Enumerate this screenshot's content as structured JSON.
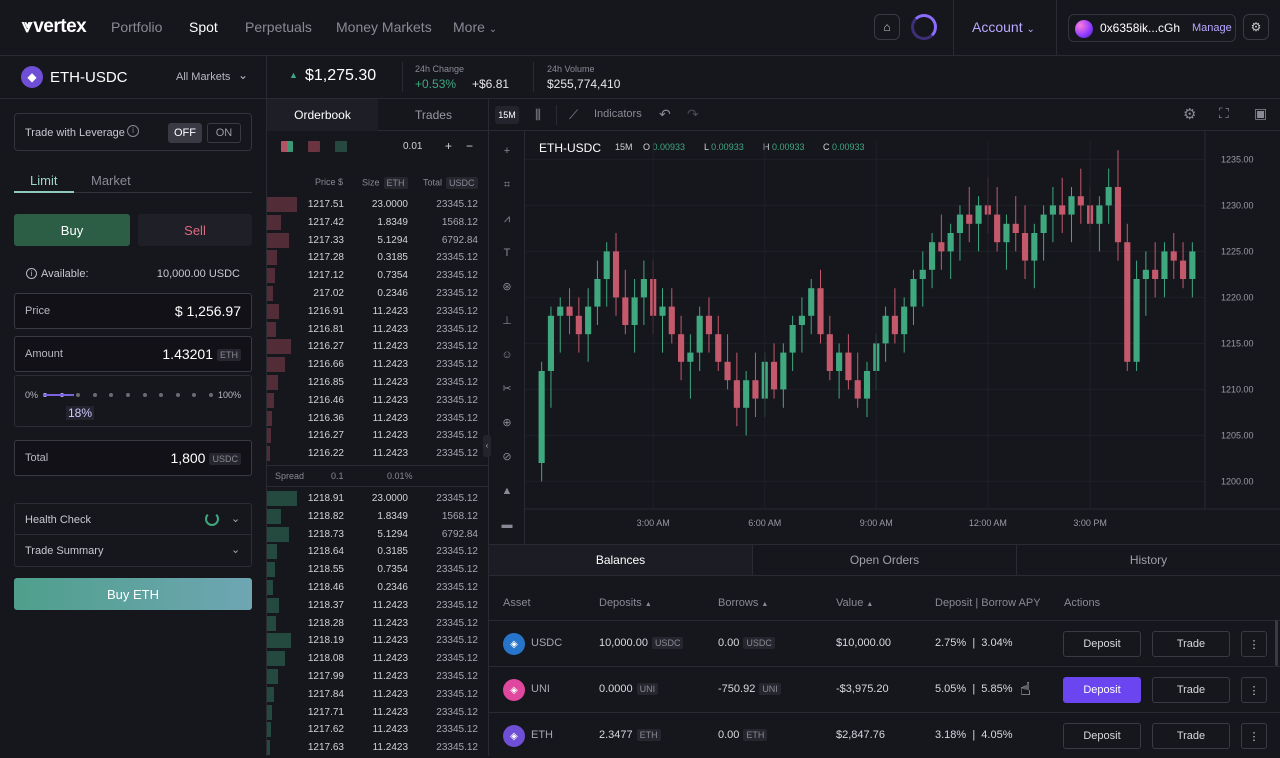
{
  "nav": {
    "logo": "vertex",
    "items": [
      "Portfolio",
      "Spot",
      "Perpetuals",
      "Money Markets",
      "More"
    ],
    "active": "Spot",
    "account_label": "Account",
    "wallet_address": "0x6358ik...cGh",
    "manage_label": "Manage"
  },
  "market": {
    "pair": "ETH-USDC",
    "all_markets": "All Markets",
    "price": "$1,275.30",
    "change_label": "24h Change",
    "change_pct": "+0.53%",
    "change_abs": "+$6.81",
    "volume_label": "24h Volume",
    "volume": "$255,774,410"
  },
  "order": {
    "leverage_label": "Trade with Leverage",
    "off": "OFF",
    "on": "ON",
    "tab_limit": "Limit",
    "tab_market": "Market",
    "buy": "Buy",
    "sell": "Sell",
    "available_label": "Available:",
    "available_value": "10,000.00 USDC",
    "price_label": "Price",
    "price_value": "$ 1,256.97",
    "amount_label": "Amount",
    "amount_value": "1.43201",
    "amount_unit": "ETH",
    "slider_min": "0%",
    "slider_max": "100%",
    "slider_value": "18%",
    "slider_fraction": 0.18,
    "total_label": "Total",
    "total_value": "1,800",
    "total_unit": "USDC",
    "health_check": "Health Check",
    "trade_summary": "Trade Summary",
    "buy_eth": "Buy ETH"
  },
  "orderbook": {
    "tab_orderbook": "Orderbook",
    "tab_trades": "Trades",
    "tick": "0.01",
    "plus": "+",
    "minus": "−",
    "col_price": "Price $",
    "col_size": "Size",
    "col_size_unit": "ETH",
    "col_total": "Total",
    "col_total_unit": "USDC",
    "spread_label": "Spread",
    "spread_value": "0.1",
    "spread_pct": "0.01%",
    "asks": [
      [
        "1217.51",
        "23.0000",
        "23345.12"
      ],
      [
        "1217.42",
        "1.8349",
        "1568.12"
      ],
      [
        "1217.33",
        "5.1294",
        "6792.84"
      ],
      [
        "1217.28",
        "0.3185",
        "23345.12"
      ],
      [
        "1217.12",
        "0.7354",
        "23345.12"
      ],
      [
        "217.02",
        "0.2346",
        "23345.12"
      ],
      [
        "1216.91",
        "11.2423",
        "23345.12"
      ],
      [
        "1216.81",
        "11.2423",
        "23345.12"
      ],
      [
        "1216.27",
        "11.2423",
        "23345.12"
      ],
      [
        "1216.66",
        "11.2423",
        "23345.12"
      ],
      [
        "1216.85",
        "11.2423",
        "23345.12"
      ],
      [
        "1216.46",
        "11.2423",
        "23345.12"
      ],
      [
        "1216.36",
        "11.2423",
        "23345.12"
      ],
      [
        "1216.27",
        "11.2423",
        "23345.12"
      ],
      [
        "1216.22",
        "11.2423",
        "23345.12"
      ]
    ],
    "bids": [
      [
        "1218.91",
        "23.0000",
        "23345.12"
      ],
      [
        "1218.82",
        "1.8349",
        "1568.12"
      ],
      [
        "1218.73",
        "5.1294",
        "6792.84"
      ],
      [
        "1218.64",
        "0.3185",
        "23345.12"
      ],
      [
        "1218.55",
        "0.7354",
        "23345.12"
      ],
      [
        "1218.46",
        "0.2346",
        "23345.12"
      ],
      [
        "1218.37",
        "11.2423",
        "23345.12"
      ],
      [
        "1218.28",
        "11.2423",
        "23345.12"
      ],
      [
        "1218.19",
        "11.2423",
        "23345.12"
      ],
      [
        "1218.08",
        "11.2423",
        "23345.12"
      ],
      [
        "1217.99",
        "11.2423",
        "23345.12"
      ],
      [
        "1217.84",
        "11.2423",
        "23345.12"
      ],
      [
        "1217.71",
        "11.2423",
        "23345.12"
      ],
      [
        "1217.62",
        "11.2423",
        "23345.12"
      ],
      [
        "1217.63",
        "11.2423",
        "23345.12"
      ]
    ]
  },
  "chart_toolbar": {
    "interval": "15M",
    "indicators": "Indicators"
  },
  "chart_data": {
    "type": "candlestick",
    "title": "ETH-USDC",
    "interval": "15M",
    "ohlc_label": {
      "O": "0.00933",
      "L": "0.00933",
      "H": "0.00933",
      "C": "0.00933"
    },
    "y_ticks": [
      "1235.00",
      "1230.00",
      "1225.00",
      "1220.00",
      "1215.00",
      "1210.00",
      "1205.00",
      "1200.00"
    ],
    "ylim": [
      1197,
      1237
    ],
    "x_ticks": [
      "3:00 AM",
      "6:00 AM",
      "9:00 AM",
      "12:00 AM",
      "3:00 PM"
    ],
    "up_color": "#3fa87f",
    "down_color": "#c4596b",
    "candles": [
      [
        1202,
        1213,
        1200,
        1212
      ],
      [
        1212,
        1219,
        1208,
        1218
      ],
      [
        1218,
        1220,
        1214,
        1219
      ],
      [
        1219,
        1221,
        1216,
        1218
      ],
      [
        1218,
        1220,
        1214,
        1216
      ],
      [
        1216,
        1221,
        1213,
        1219
      ],
      [
        1219,
        1224,
        1217,
        1222
      ],
      [
        1222,
        1226,
        1219,
        1225
      ],
      [
        1225,
        1227,
        1218,
        1220
      ],
      [
        1220,
        1223,
        1216,
        1217
      ],
      [
        1217,
        1222,
        1214,
        1220
      ],
      [
        1220,
        1224,
        1217,
        1222
      ],
      [
        1222,
        1224,
        1216,
        1218
      ],
      [
        1218,
        1221,
        1214,
        1219
      ],
      [
        1219,
        1221,
        1215,
        1216
      ],
      [
        1216,
        1218,
        1211,
        1213
      ],
      [
        1213,
        1216,
        1209,
        1214
      ],
      [
        1214,
        1219,
        1212,
        1218
      ],
      [
        1218,
        1220,
        1214,
        1216
      ],
      [
        1216,
        1218,
        1212,
        1213
      ],
      [
        1213,
        1216,
        1210,
        1211
      ],
      [
        1211,
        1214,
        1206,
        1208
      ],
      [
        1208,
        1212,
        1205,
        1211
      ],
      [
        1211,
        1214,
        1207,
        1209
      ],
      [
        1209,
        1214,
        1207,
        1213
      ],
      [
        1213,
        1215,
        1209,
        1210
      ],
      [
        1210,
        1215,
        1208,
        1214
      ],
      [
        1214,
        1218,
        1212,
        1217
      ],
      [
        1217,
        1220,
        1214,
        1218
      ],
      [
        1218,
        1222,
        1216,
        1221
      ],
      [
        1221,
        1223,
        1215,
        1216
      ],
      [
        1216,
        1218,
        1211,
        1212
      ],
      [
        1212,
        1215,
        1209,
        1214
      ],
      [
        1214,
        1216,
        1210,
        1211
      ],
      [
        1211,
        1214,
        1208,
        1209
      ],
      [
        1209,
        1213,
        1207,
        1212
      ],
      [
        1212,
        1216,
        1210,
        1215
      ],
      [
        1215,
        1219,
        1213,
        1218
      ],
      [
        1218,
        1221,
        1215,
        1216
      ],
      [
        1216,
        1220,
        1214,
        1219
      ],
      [
        1219,
        1223,
        1217,
        1222
      ],
      [
        1222,
        1225,
        1219,
        1223
      ],
      [
        1223,
        1227,
        1221,
        1226
      ],
      [
        1226,
        1229,
        1223,
        1225
      ],
      [
        1225,
        1228,
        1222,
        1227
      ],
      [
        1227,
        1230,
        1224,
        1229
      ],
      [
        1229,
        1232,
        1226,
        1228
      ],
      [
        1228,
        1231,
        1225,
        1230
      ],
      [
        1230,
        1233,
        1227,
        1229
      ],
      [
        1229,
        1232,
        1225,
        1226
      ],
      [
        1226,
        1229,
        1223,
        1228
      ],
      [
        1228,
        1231,
        1225,
        1227
      ],
      [
        1227,
        1230,
        1222,
        1224
      ],
      [
        1224,
        1228,
        1221,
        1227
      ],
      [
        1227,
        1230,
        1224,
        1229
      ],
      [
        1229,
        1232,
        1226,
        1230
      ],
      [
        1230,
        1233,
        1227,
        1229
      ],
      [
        1229,
        1232,
        1226,
        1231
      ],
      [
        1231,
        1234,
        1228,
        1230
      ],
      [
        1230,
        1232,
        1227,
        1228
      ],
      [
        1228,
        1231,
        1225,
        1230
      ],
      [
        1230,
        1234,
        1228,
        1232
      ],
      [
        1232,
        1236,
        1224,
        1226
      ],
      [
        1226,
        1228,
        1212,
        1213
      ],
      [
        1213,
        1224,
        1212,
        1222
      ],
      [
        1222,
        1225,
        1218,
        1223
      ],
      [
        1223,
        1226,
        1220,
        1222
      ],
      [
        1222,
        1226,
        1220,
        1225
      ],
      [
        1225,
        1227,
        1222,
        1224
      ],
      [
        1224,
        1226,
        1221,
        1222
      ],
      [
        1222,
        1226,
        1220,
        1225
      ]
    ]
  },
  "balances": {
    "tabs": [
      "Balances",
      "Open Orders",
      "History"
    ],
    "headers": [
      "Asset",
      "Deposits",
      "Borrows",
      "Value",
      "Deposit | Borrow APY",
      "Actions"
    ],
    "deposit_label": "Deposit",
    "trade_label": "Trade",
    "rows": [
      {
        "asset": "USDC",
        "deposits": "10,000.00",
        "dep_unit": "USDC",
        "borrows": "0.00",
        "bor_unit": "USDC",
        "value": "$10,000.00",
        "dep_apy": "2.75%",
        "bor_apy": "3.04%",
        "color": "#2775ca"
      },
      {
        "asset": "UNI",
        "deposits": "0.0000",
        "dep_unit": "UNI",
        "borrows": "-750.92",
        "bor_unit": "UNI",
        "value": "-$3,975.20",
        "dep_apy": "5.05%",
        "bor_apy": "5.85%",
        "color": "#e0479e"
      },
      {
        "asset": "ETH",
        "deposits": "2.3477",
        "dep_unit": "ETH",
        "borrows": "0.00",
        "bor_unit": "ETH",
        "value": "$2,847.76",
        "dep_apy": "3.18%",
        "bor_apy": "4.05%",
        "color": "#6e4fd6"
      }
    ]
  }
}
